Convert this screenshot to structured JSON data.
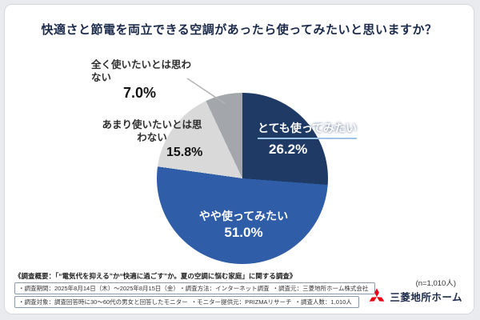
{
  "title": "快適さと節電を両立できる空調があったら使ってみたいと思いますか？",
  "n_note": "(n=1,010人)",
  "chart_data": {
    "type": "pie",
    "title": "快適さと節電を両立できる空調があったら使ってみたいと思いますか？",
    "n": "1,010",
    "start_angle_deg": 0,
    "direction": "clockwise",
    "segments": [
      {
        "label": "とても使ってみたい",
        "value": 26.2,
        "display": "26.2%",
        "color": "#203a66"
      },
      {
        "label": "やや使ってみたい",
        "value": 51.0,
        "display": "51.0%",
        "color": "#2f5da8"
      },
      {
        "label": "あまり使いたいとは思わない",
        "value": 15.8,
        "display": "15.8%",
        "color": "#d9d9d9"
      },
      {
        "label": "全く使いたいとは思わない",
        "value": 7.0,
        "display": "7.0%",
        "color": "#a3a7ab"
      }
    ]
  },
  "footer": {
    "overview": "《調査概要：「“電気代を抑える”か“快適に過ごす”か。夏の空調に悩む家庭」に関する調査》",
    "line1": [
      "調査期間：2025年8月14日（木）〜2025年8月15日（金）",
      "調査方法：インターネット調査",
      "調査元：三菱地所ホーム株式会社"
    ],
    "line2": [
      "調査対象：調査回答時に30〜60代の男女と回答したモニター",
      "モニター提供元：PRIZMAリサーチ",
      "調査人数：1,010人"
    ]
  },
  "logo": {
    "text": "三菱地所ホーム",
    "mark_color": "#e60012"
  }
}
